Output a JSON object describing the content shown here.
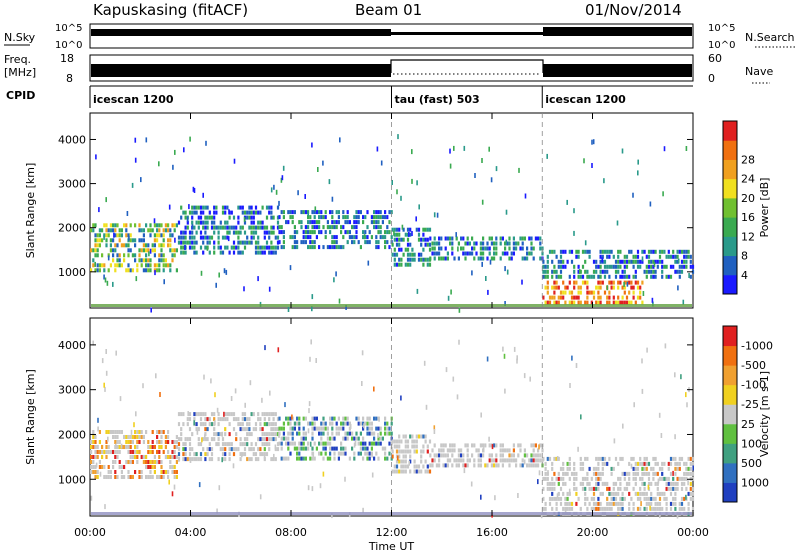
{
  "header": {
    "station": "Kapuskasing (fitACF)",
    "beam": "Beam 01",
    "date": "01/Nov/2014"
  },
  "strips": {
    "nsky_label": "N.Sky",
    "nsky_ticks": [
      "10^5",
      "10^0"
    ],
    "nsearch_label": "N.Search",
    "nsearch_ticks": [
      "10^5",
      "10^0"
    ],
    "freq_label_1": "Freq.",
    "freq_label_2": "[MHz]",
    "freq_ticks": [
      "18",
      "8"
    ],
    "nave_label": "Nave",
    "nave_ticks": [
      "60",
      "0"
    ],
    "cpid_label": "CPID",
    "cpid_segments": [
      {
        "label": "icescan 1200",
        "start_h": 0,
        "end_h": 12
      },
      {
        "label": "tau (fast) 503",
        "start_h": 12,
        "end_h": 18
      },
      {
        "label": "icescan 1200",
        "start_h": 18,
        "end_h": 24
      }
    ]
  },
  "chart_data": [
    {
      "type": "heatmap",
      "quantity": "Power",
      "ylabel": "Slant Range [km]",
      "ylim": [
        180,
        4600
      ],
      "yticks": [
        1000,
        2000,
        3000,
        4000
      ],
      "xlim_h": [
        0,
        24
      ],
      "colorbar": {
        "label": "Power [dB]",
        "tick_labels": [
          "4",
          "8",
          "12",
          "16",
          "20",
          "24",
          "28"
        ],
        "colors": [
          "#1a1aff",
          "#2060c0",
          "#2a9a8a",
          "#3aaa50",
          "#70c030",
          "#f0e020",
          "#f0a020",
          "#f07010",
          "#e02020"
        ]
      },
      "echo_bands": [
        {
          "t0": 0,
          "t1": 3.5,
          "r0": 1000,
          "r1": 2100,
          "level": "mid"
        },
        {
          "t0": 3.5,
          "t1": 7.5,
          "r0": 1400,
          "r1": 2500,
          "level": "low"
        },
        {
          "t0": 7.5,
          "t1": 12,
          "r0": 1500,
          "r1": 2400,
          "level": "low"
        },
        {
          "t0": 12,
          "t1": 13.5,
          "r0": 1200,
          "r1": 2000,
          "level": "low"
        },
        {
          "t0": 13.5,
          "t1": 18,
          "r0": 1250,
          "r1": 1800,
          "level": "low"
        },
        {
          "t0": 18,
          "t1": 24,
          "r0": 900,
          "r1": 1500,
          "level": "low"
        },
        {
          "t0": 18,
          "t1": 22,
          "r0": 250,
          "r1": 800,
          "level": "high"
        }
      ]
    },
    {
      "type": "heatmap",
      "quantity": "Velocity",
      "ylabel": "Slant Range [km]",
      "ylim": [
        180,
        4600
      ],
      "yticks": [
        1000,
        2000,
        3000,
        4000
      ],
      "xlim_h": [
        0,
        24
      ],
      "colorbar": {
        "label": "Velocity [m s-1]",
        "tick_labels": [
          "1000",
          "500",
          "100",
          "25",
          "-25",
          "-100",
          "-500",
          "-1000"
        ],
        "colors": [
          "#2040c0",
          "#3070c0",
          "#40a080",
          "#60c040",
          "#c8c8c8",
          "#f0d020",
          "#f0a030",
          "#f07010",
          "#e02020"
        ]
      },
      "echo_bands": [
        {
          "t0": 0,
          "t1": 3.5,
          "r0": 1000,
          "r1": 2100,
          "level": "neg"
        },
        {
          "t0": 3.5,
          "t1": 7.5,
          "r0": 1400,
          "r1": 2500,
          "level": "grey"
        },
        {
          "t0": 7.5,
          "t1": 12,
          "r0": 1500,
          "r1": 2400,
          "level": "pos"
        },
        {
          "t0": 12,
          "t1": 13.5,
          "r0": 1200,
          "r1": 2000,
          "level": "grey"
        },
        {
          "t0": 13.5,
          "t1": 18,
          "r0": 1250,
          "r1": 1800,
          "level": "grey"
        },
        {
          "t0": 18,
          "t1": 24,
          "r0": 250,
          "r1": 1500,
          "level": "grey"
        }
      ]
    }
  ],
  "xaxis": {
    "label": "Time UT",
    "tick_labels": [
      "00:00",
      "04:00",
      "08:00",
      "12:00",
      "16:00",
      "20:00",
      "00:00"
    ]
  }
}
